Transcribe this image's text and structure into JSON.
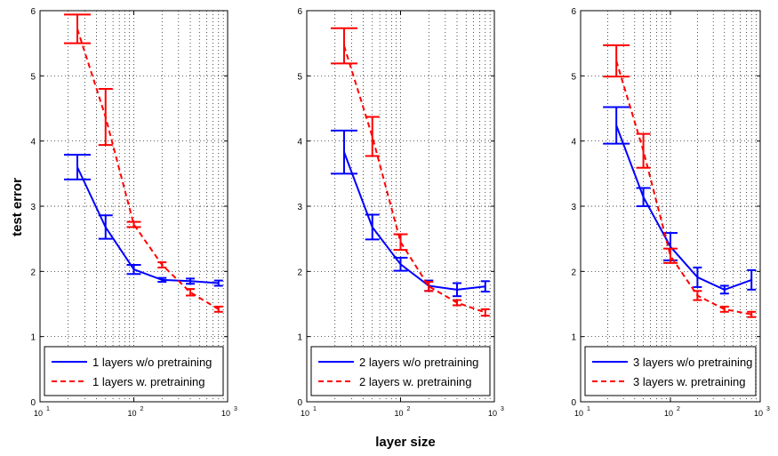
{
  "figure": {
    "ylabel": "test error",
    "xlabel": "layer size"
  },
  "chart_data": [
    {
      "type": "line",
      "x_scale": "log",
      "xlim": [
        10,
        1000
      ],
      "ylim": [
        0,
        6
      ],
      "x_ticks": [
        {
          "base": "10",
          "exp": "1"
        },
        {
          "base": "10",
          "exp": "2"
        },
        {
          "base": "10",
          "exp": "3"
        }
      ],
      "y_ticks": [
        "0",
        "1",
        "2",
        "3",
        "4",
        "5",
        "6"
      ],
      "grid": true,
      "legend_position": "bottom",
      "series": [
        {
          "name": "1 layers w/o pretraining",
          "color": "#0000ff",
          "style": "solid",
          "x": [
            25,
            50,
            100,
            200,
            400,
            800
          ],
          "y": [
            3.6,
            2.68,
            2.03,
            1.87,
            1.85,
            1.82
          ],
          "err": [
            0.19,
            0.18,
            0.07,
            0.03,
            0.04,
            0.04
          ]
        },
        {
          "name": "1 layers w. pretraining",
          "color": "#ff0000",
          "style": "dashed",
          "x": [
            25,
            50,
            100,
            200,
            400,
            800
          ],
          "y": [
            5.72,
            4.37,
            2.72,
            2.1,
            1.68,
            1.42
          ],
          "err": [
            0.22,
            0.43,
            0.04,
            0.04,
            0.05,
            0.04
          ]
        }
      ]
    },
    {
      "type": "line",
      "x_scale": "log",
      "xlim": [
        10,
        1000
      ],
      "ylim": [
        0,
        6
      ],
      "x_ticks": [
        {
          "base": "10",
          "exp": "1"
        },
        {
          "base": "10",
          "exp": "2"
        },
        {
          "base": "10",
          "exp": "3"
        }
      ],
      "y_ticks": [
        "0",
        "1",
        "2",
        "3",
        "4",
        "5",
        "6"
      ],
      "grid": true,
      "legend_position": "bottom",
      "series": [
        {
          "name": "2 layers w/o pretraining",
          "color": "#0000ff",
          "style": "solid",
          "x": [
            25,
            50,
            100,
            200,
            400,
            800
          ],
          "y": [
            3.83,
            2.68,
            2.11,
            1.78,
            1.72,
            1.77
          ],
          "err": [
            0.33,
            0.19,
            0.1,
            0.08,
            0.1,
            0.08
          ]
        },
        {
          "name": "2 layers w. pretraining",
          "color": "#ff0000",
          "style": "dashed",
          "x": [
            25,
            50,
            100,
            200,
            400,
            800
          ],
          "y": [
            5.46,
            4.07,
            2.45,
            1.77,
            1.52,
            1.37
          ],
          "err": [
            0.27,
            0.3,
            0.12,
            0.07,
            0.04,
            0.05
          ]
        }
      ]
    },
    {
      "type": "line",
      "x_scale": "log",
      "xlim": [
        10,
        1000
      ],
      "ylim": [
        0,
        6
      ],
      "x_ticks": [
        {
          "base": "10",
          "exp": "1"
        },
        {
          "base": "10",
          "exp": "2"
        },
        {
          "base": "10",
          "exp": "3"
        }
      ],
      "y_ticks": [
        "0",
        "1",
        "2",
        "3",
        "4",
        "5",
        "6"
      ],
      "grid": true,
      "legend_position": "bottom",
      "series": [
        {
          "name": "3 layers w/o pretraining",
          "color": "#0000ff",
          "style": "solid",
          "x": [
            25,
            50,
            100,
            200,
            400,
            800
          ],
          "y": [
            4.24,
            3.14,
            2.38,
            1.91,
            1.72,
            1.87
          ],
          "err": [
            0.28,
            0.14,
            0.21,
            0.15,
            0.06,
            0.15
          ]
        },
        {
          "name": "3 layers w. pretraining",
          "color": "#ff0000",
          "style": "dashed",
          "x": [
            25,
            50,
            100,
            200,
            400,
            800
          ],
          "y": [
            5.23,
            3.85,
            2.24,
            1.63,
            1.42,
            1.34
          ],
          "err": [
            0.24,
            0.26,
            0.11,
            0.07,
            0.04,
            0.04
          ]
        }
      ]
    }
  ]
}
